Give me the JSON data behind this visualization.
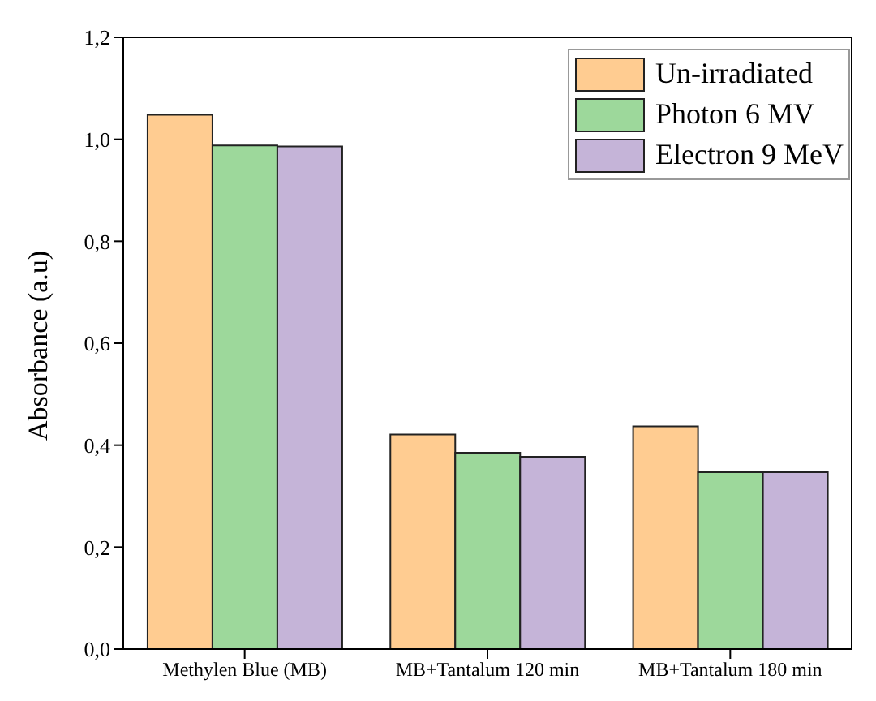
{
  "chart_data": {
    "type": "bar",
    "ylabel": "Absorbance (a.u)",
    "categories": [
      "Methylen Blue (MB)",
      "MB+Tantalum 120 min",
      "MB+Tantalum 180 min"
    ],
    "series": [
      {
        "name": "Un-irradiated",
        "color": "#ffcc91",
        "values": [
          1.048,
          0.421,
          0.437
        ]
      },
      {
        "name": "Photon 6 MV",
        "color": "#9dd89b",
        "values": [
          0.988,
          0.385,
          0.347
        ]
      },
      {
        "name": "Electron 9 MeV",
        "color": "#c5b4d8",
        "values": [
          0.986,
          0.377,
          0.347
        ]
      }
    ],
    "ylim": [
      0,
      1.2
    ],
    "yticks": [
      {
        "value": 0,
        "label": "0,0"
      },
      {
        "value": 0.2,
        "label": "0,2"
      },
      {
        "value": 0.4,
        "label": "0,4"
      },
      {
        "value": 0.6,
        "label": "0,6"
      },
      {
        "value": 0.8,
        "label": "0,8"
      },
      {
        "value": 1,
        "label": "1,0"
      },
      {
        "value": 1.2,
        "label": "1,2"
      }
    ],
    "legend": "top right"
  }
}
